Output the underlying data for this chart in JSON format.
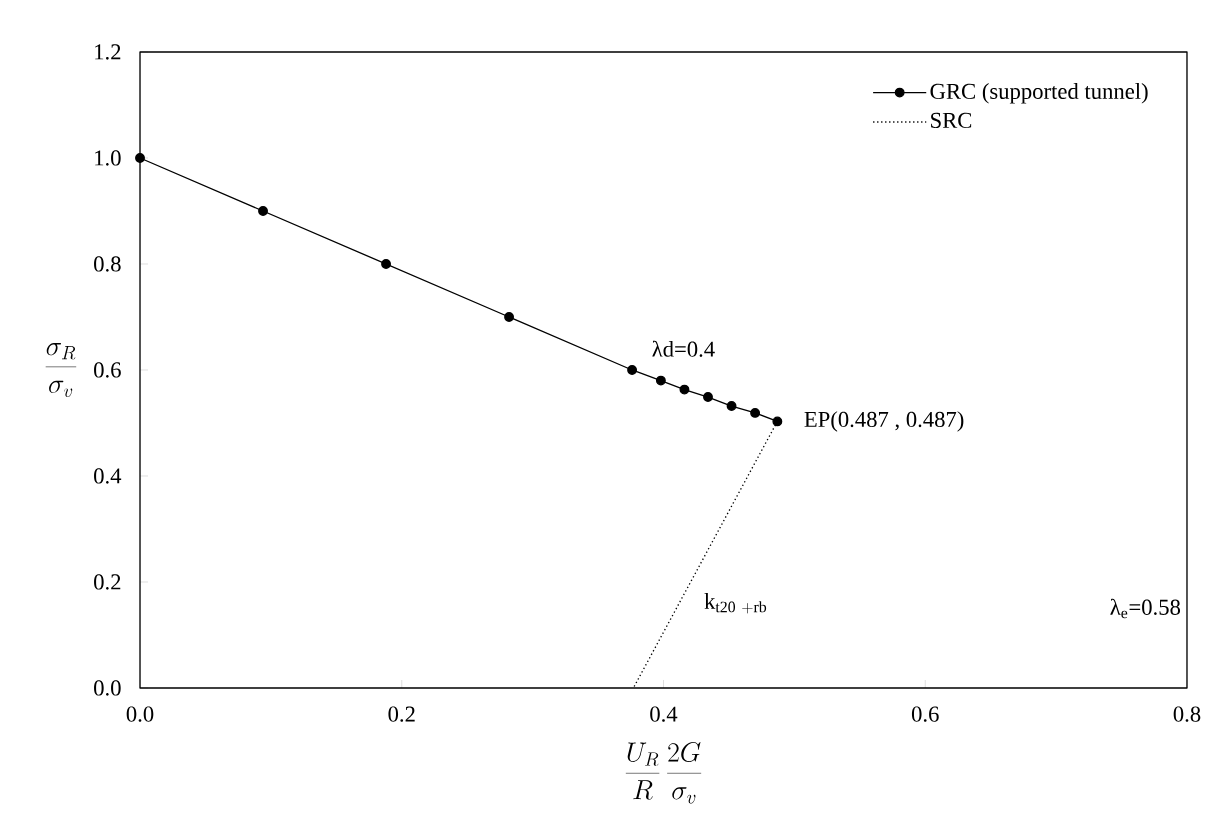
{
  "chart_data": {
    "type": "line",
    "xlabel": "\\frac{U_R}{R}\\,\\frac{2G}{\\sigma_v}",
    "ylabel": "\\frac{\\sigma_R}{\\sigma_v}",
    "xlim": [
      0,
      0.8
    ],
    "ylim": [
      0,
      1.2
    ],
    "xticks": [
      {
        "value": 0,
        "label": "0.0"
      },
      {
        "value": 0.2,
        "label": "0.2"
      },
      {
        "value": 0.4,
        "label": "0.4"
      },
      {
        "value": 0.6,
        "label": "0.6"
      },
      {
        "value": 0.8,
        "label": "0.8"
      }
    ],
    "yticks": [
      {
        "value": 0,
        "label": "0.0"
      },
      {
        "value": 0.2,
        "label": "0.2"
      },
      {
        "value": 0.4,
        "label": "0.4"
      },
      {
        "value": 0.6,
        "label": "0.6"
      },
      {
        "value": 0.8,
        "label": "0.8"
      },
      {
        "value": 1.0,
        "label": "1.0"
      },
      {
        "value": 1.2,
        "label": "1.2"
      }
    ],
    "series": [
      {
        "name": "GRC (supported tunnel)",
        "color": "#000000",
        "marker": "circle",
        "line_style": "solid",
        "x": [
          0,
          0.094,
          0.188,
          0.282,
          0.376,
          0.398,
          0.416,
          0.434,
          0.452,
          0.47,
          0.487
        ],
        "values": [
          1.0,
          0.9,
          0.8,
          0.7,
          0.6,
          0.58,
          0.563,
          0.549,
          0.532,
          0.519,
          0.503
        ]
      },
      {
        "name": "SRC",
        "color": "#000000",
        "marker": "none",
        "line_style": "dotted",
        "x": [
          0.487,
          0.377
        ],
        "values": [
          0.503,
          0
        ]
      }
    ],
    "annotations": [
      "λd=0.4",
      {
        "text": "EP(0.487 , 0.487)",
        "x": 0.487,
        "y": 0.503
      },
      "\\mathrm{k}_{\\mathrm{t20\\ +rb}}",
      "λ$_{e}$=0.58"
    ],
    "legend": "top right",
    "grid": false
  }
}
